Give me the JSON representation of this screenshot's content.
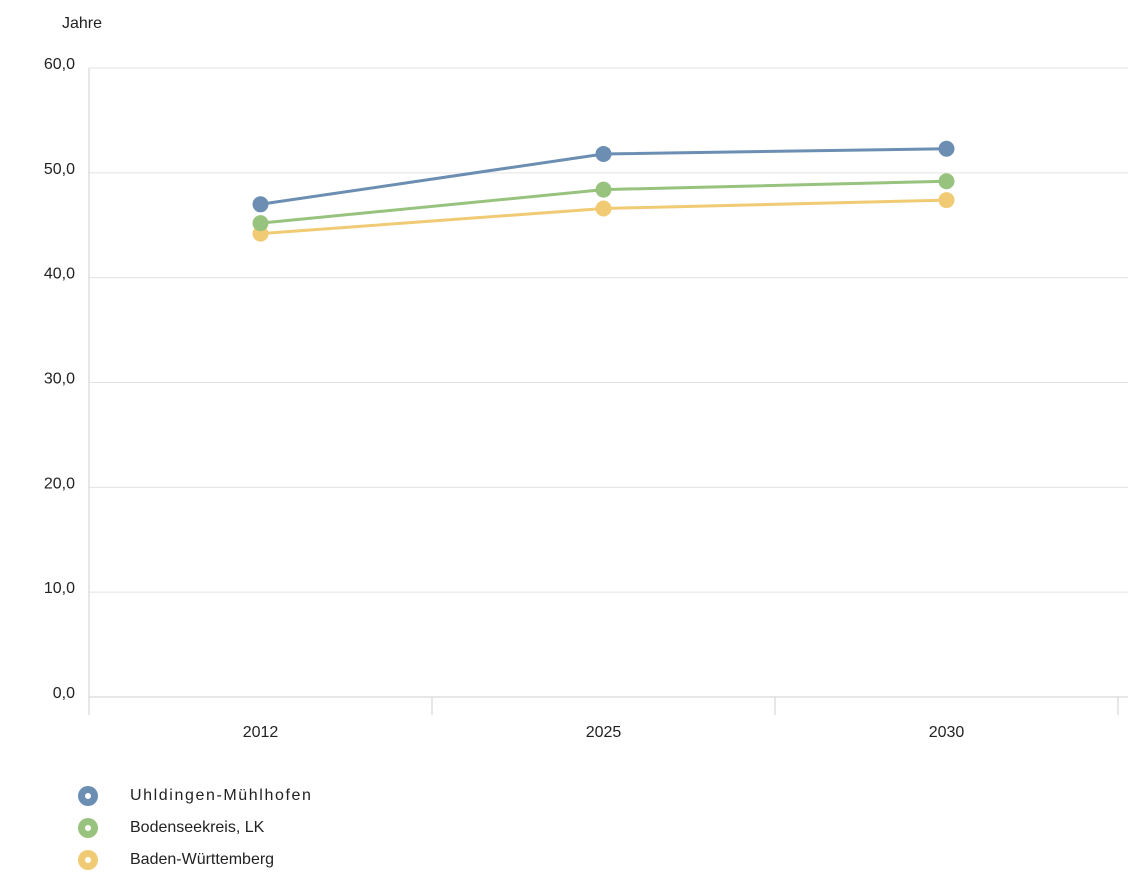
{
  "chart_data": {
    "type": "line",
    "ylabel": "Jahre",
    "categories": [
      "2012",
      "2025",
      "2030"
    ],
    "y_ticks": [
      "0,0",
      "10,0",
      "20,0",
      "30,0",
      "40,0",
      "50,0",
      "60,0"
    ],
    "ylim": [
      0,
      60
    ],
    "grid": true,
    "legend_position": "bottom-left",
    "series": [
      {
        "name": "Uhldingen-Mühlhofen",
        "color": "#6c8eb3",
        "values": [
          47.0,
          51.8,
          52.3
        ]
      },
      {
        "name": "Bodenseekreis, LK",
        "color": "#98c37f",
        "values": [
          45.2,
          48.4,
          49.2
        ]
      },
      {
        "name": "Baden-Württemberg",
        "color": "#f0cb74",
        "values": [
          44.2,
          46.6,
          47.4
        ]
      }
    ]
  }
}
